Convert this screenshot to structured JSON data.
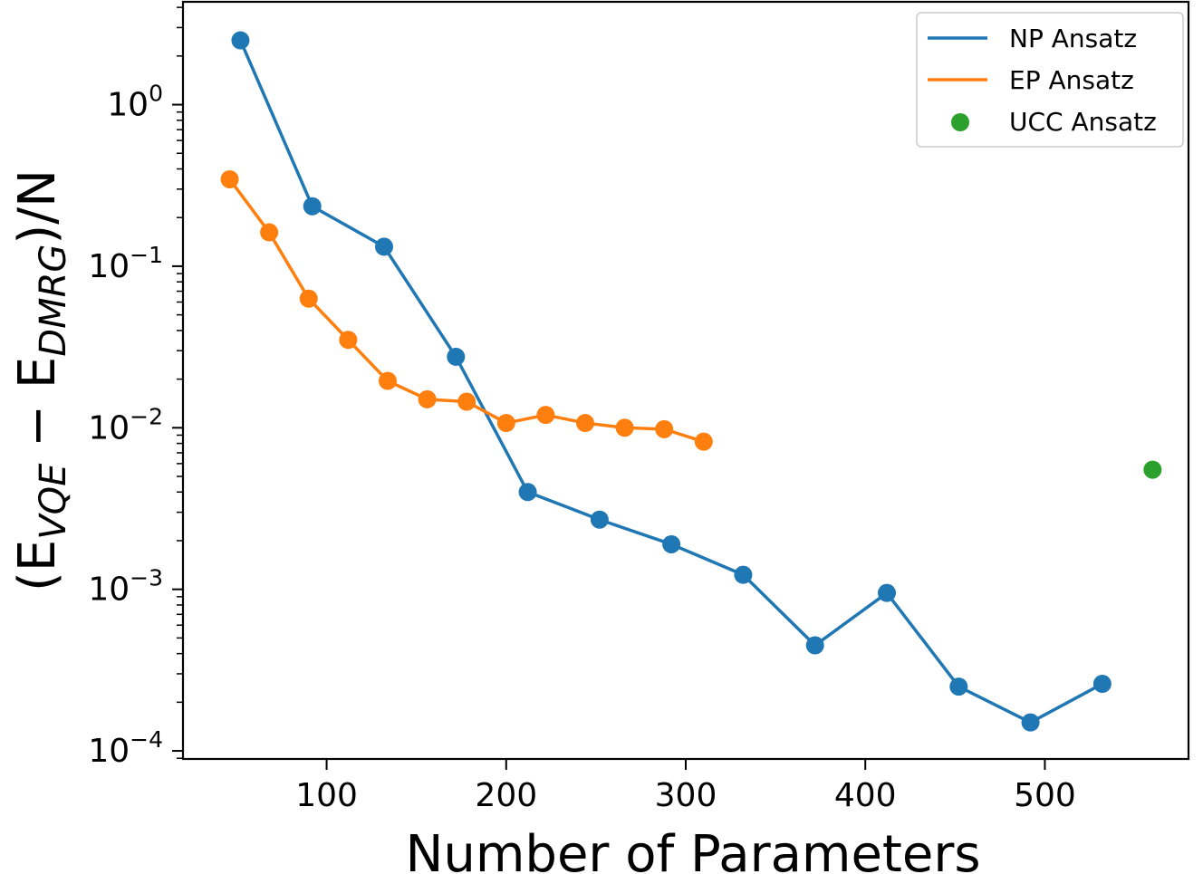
{
  "chart_data": {
    "type": "line",
    "xlabel": "Number of Parameters",
    "ylabel": {
      "open": "(E",
      "sub1": "VQE",
      "mid": " − E",
      "sub2": "DMRG",
      "close": ")/N"
    },
    "xlim": [
      20,
      580
    ],
    "ylim": [
      8.91e-05,
      4.33
    ],
    "yscale": "log",
    "grid": false,
    "legend_position": "top-right",
    "x_ticks": [
      100,
      200,
      300,
      400,
      500
    ],
    "y_ticks": [
      {
        "value": 1,
        "base": "10",
        "exp": "0"
      },
      {
        "value": 0.1,
        "base": "10",
        "exp": "−1"
      },
      {
        "value": 0.01,
        "base": "10",
        "exp": "−2"
      },
      {
        "value": 0.001,
        "base": "10",
        "exp": "−3"
      },
      {
        "value": 0.0001,
        "base": "10",
        "exp": "−4"
      }
    ],
    "series": [
      {
        "name": "NP Ansatz",
        "color": "#1f77b4",
        "style": "line-marker",
        "x": [
          52,
          92,
          132,
          172,
          212,
          252,
          292,
          332,
          372,
          412,
          452,
          492,
          532
        ],
        "y": [
          2.5,
          0.235,
          0.132,
          0.0275,
          0.004,
          0.0027,
          0.0019,
          0.00123,
          0.00045,
          0.00095,
          0.00025,
          0.00015,
          0.00026
        ]
      },
      {
        "name": "EP Ansatz",
        "color": "#ff7f0e",
        "style": "line-marker",
        "x": [
          46,
          68,
          90,
          112,
          134,
          156,
          178,
          200,
          222,
          244,
          266,
          288,
          310
        ],
        "y": [
          0.345,
          0.162,
          0.063,
          0.035,
          0.0195,
          0.015,
          0.0145,
          0.0107,
          0.012,
          0.0107,
          0.01,
          0.0098,
          0.0082
        ]
      },
      {
        "name": "UCC Ansatz",
        "color": "#2ca02c",
        "style": "marker",
        "x": [
          560
        ],
        "y": [
          0.0055
        ]
      }
    ]
  }
}
